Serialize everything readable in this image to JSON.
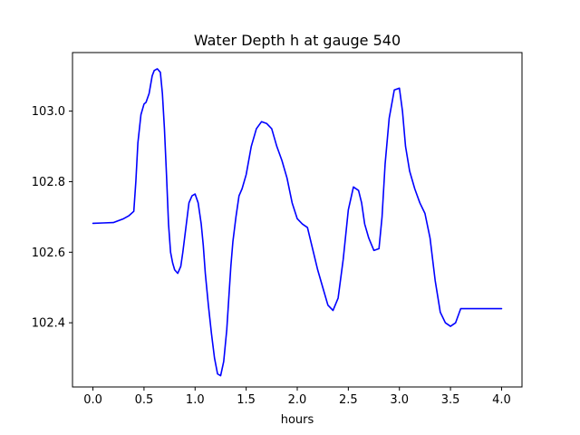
{
  "chart_data": {
    "type": "line",
    "title": "Water Depth h at gauge 540",
    "xlabel": "hours",
    "ylabel": "",
    "xlim": [
      -0.2,
      4.2
    ],
    "ylim": [
      102.218,
      103.166
    ],
    "xticks": [
      0.0,
      0.5,
      1.0,
      1.5,
      2.0,
      2.5,
      3.0,
      3.5,
      4.0
    ],
    "xtick_labels": [
      "0.0",
      "0.5",
      "1.0",
      "1.5",
      "2.0",
      "2.5",
      "3.0",
      "3.5",
      "4.0"
    ],
    "yticks": [
      102.4,
      102.6,
      102.8,
      103.0
    ],
    "ytick_labels": [
      "102.4",
      "102.6",
      "102.8",
      "103.0"
    ],
    "grid": false,
    "series": [
      {
        "color": "#0000ff",
        "x": [
          0.0,
          0.1,
          0.2,
          0.3,
          0.35,
          0.4,
          0.42,
          0.44,
          0.47,
          0.5,
          0.52,
          0.55,
          0.58,
          0.6,
          0.63,
          0.66,
          0.68,
          0.7,
          0.72,
          0.74,
          0.76,
          0.78,
          0.8,
          0.83,
          0.86,
          0.88,
          0.91,
          0.94,
          0.97,
          1.0,
          1.03,
          1.06,
          1.08,
          1.1,
          1.13,
          1.16,
          1.19,
          1.22,
          1.25,
          1.28,
          1.31,
          1.33,
          1.35,
          1.37,
          1.4,
          1.43,
          1.46,
          1.5,
          1.55,
          1.6,
          1.65,
          1.7,
          1.75,
          1.8,
          1.85,
          1.9,
          1.95,
          2.0,
          2.05,
          2.1,
          2.15,
          2.2,
          2.25,
          2.3,
          2.35,
          2.4,
          2.45,
          2.5,
          2.55,
          2.6,
          2.63,
          2.66,
          2.7,
          2.75,
          2.8,
          2.83,
          2.86,
          2.9,
          2.95,
          3.0,
          3.03,
          3.06,
          3.1,
          3.15,
          3.2,
          3.25,
          3.3,
          3.35,
          3.4,
          3.45,
          3.5,
          3.55,
          3.6,
          3.65,
          3.7,
          3.75,
          3.8,
          3.85,
          3.9,
          3.95,
          4.0
        ],
        "values": [
          102.682,
          102.683,
          102.684,
          102.695,
          102.703,
          102.716,
          102.8,
          102.91,
          102.99,
          103.02,
          103.025,
          103.05,
          103.1,
          103.115,
          103.12,
          103.11,
          103.05,
          102.95,
          102.82,
          102.68,
          102.6,
          102.57,
          102.55,
          102.54,
          102.56,
          102.6,
          102.67,
          102.74,
          102.76,
          102.765,
          102.74,
          102.68,
          102.62,
          102.54,
          102.45,
          102.37,
          102.3,
          102.255,
          102.25,
          102.29,
          102.38,
          102.47,
          102.56,
          102.63,
          102.7,
          102.76,
          102.78,
          102.82,
          102.9,
          102.95,
          102.97,
          102.965,
          102.95,
          102.9,
          102.86,
          102.81,
          102.74,
          102.695,
          102.68,
          102.67,
          102.61,
          102.55,
          102.5,
          102.45,
          102.435,
          102.47,
          102.58,
          102.72,
          102.785,
          102.775,
          102.74,
          102.68,
          102.64,
          102.605,
          102.61,
          102.7,
          102.85,
          102.98,
          103.06,
          103.065,
          103.0,
          102.9,
          102.83,
          102.78,
          102.74,
          102.71,
          102.64,
          102.52,
          102.43,
          102.4,
          102.39,
          102.4,
          102.44,
          102.44,
          102.44,
          102.44,
          102.44,
          102.44,
          102.44,
          102.44,
          102.44
        ]
      }
    ]
  }
}
